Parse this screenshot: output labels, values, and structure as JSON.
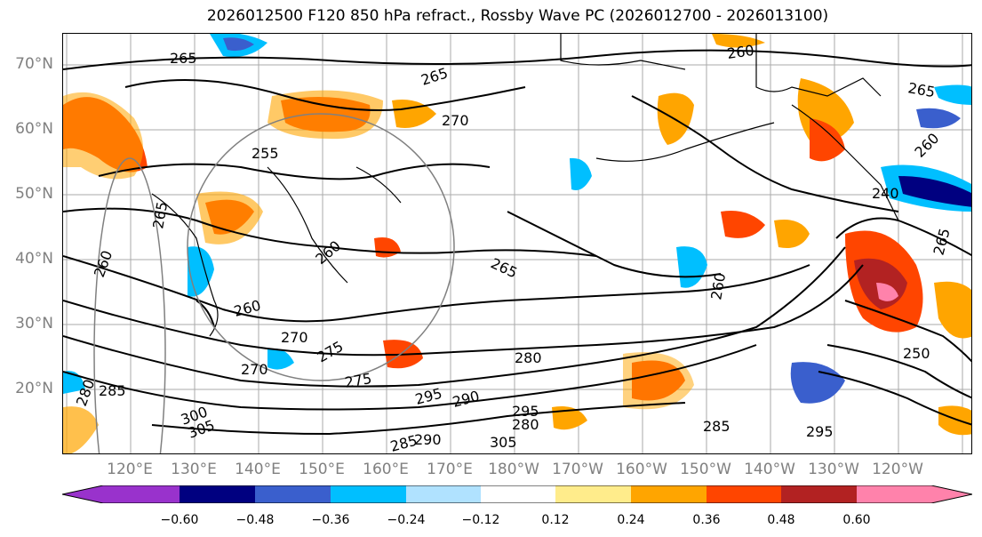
{
  "title": "2026012500 F120 850 hPa refract., Rossby Wave PC (2026012700 - 2026013100)",
  "lat_labels": [
    "70°N",
    "60°N",
    "50°N",
    "40°N",
    "30°N",
    "20°N"
  ],
  "lon_labels": [
    "120°E",
    "130°E",
    "140°E",
    "150°E",
    "160°E",
    "170°E",
    "180°W",
    "170°W",
    "160°W",
    "150°W",
    "140°W",
    "130°W",
    "120°W"
  ],
  "contour_labels": [
    "265",
    "260",
    "265",
    "265",
    "270",
    "255",
    "265",
    "260",
    "260",
    "265",
    "260",
    "270",
    "275",
    "270",
    "275",
    "280",
    "285",
    "295",
    "290",
    "280",
    "290",
    "305",
    "285",
    "295",
    "250",
    "260",
    "260",
    "240",
    "265",
    "280",
    "285",
    "300",
    "295",
    "305"
  ],
  "colorbar": {
    "colors": [
      "#9932cc",
      "#000080",
      "#3a5fcd",
      "#00bfff",
      "#b0e2ff",
      "#ffffff",
      "#ffec8b",
      "#ffa500",
      "#ff4500",
      "#b22222",
      "#ff82ab"
    ],
    "ticks": [
      "−0.60",
      "−0.48",
      "−0.36",
      "−0.24",
      "−0.12",
      "0.12",
      "0.24",
      "0.36",
      "0.48",
      "0.60"
    ]
  }
}
